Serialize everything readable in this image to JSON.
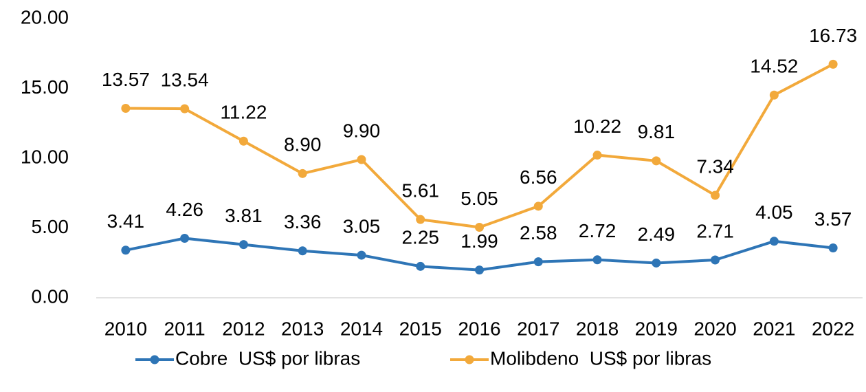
{
  "chart_data": {
    "type": "line",
    "categories": [
      "2010",
      "2011",
      "2012",
      "2013",
      "2014",
      "2015",
      "2016",
      "2017",
      "2018",
      "2019",
      "2020",
      "2021",
      "2022"
    ],
    "series": [
      {
        "name": "Cobre  US$ por libras",
        "color": "#2e75b6",
        "values": [
          3.41,
          4.26,
          3.81,
          3.36,
          3.05,
          2.25,
          1.99,
          2.58,
          2.72,
          2.49,
          2.71,
          4.05,
          3.57
        ],
        "value_labels": [
          "3.41",
          "4.26",
          "3.81",
          "3.36",
          "3.05",
          "2.25",
          "1.99",
          "2.58",
          "2.72",
          "2.49",
          "2.71",
          "4.05",
          "3.57"
        ]
      },
      {
        "name": "Molibdeno  US$ por libras",
        "color": "#f2a93b",
        "values": [
          13.57,
          13.54,
          11.22,
          8.9,
          9.9,
          5.61,
          5.05,
          6.56,
          10.22,
          9.81,
          7.34,
          14.52,
          16.73
        ],
        "value_labels": [
          "13.57",
          "13.54",
          "11.22",
          "8.90",
          "9.90",
          "5.61",
          "5.05",
          "6.56",
          "10.22",
          "9.81",
          "7.34",
          "14.52",
          "16.73"
        ]
      }
    ],
    "ylim": [
      0,
      20
    ],
    "yticks": [
      {
        "value": 0,
        "label": "0.00"
      },
      {
        "value": 5,
        "label": "5.00"
      },
      {
        "value": 10,
        "label": "10.00"
      },
      {
        "value": 15,
        "label": "15.00"
      },
      {
        "value": 20,
        "label": "20.00"
      }
    ],
    "grid": false,
    "legend": "bottom"
  }
}
